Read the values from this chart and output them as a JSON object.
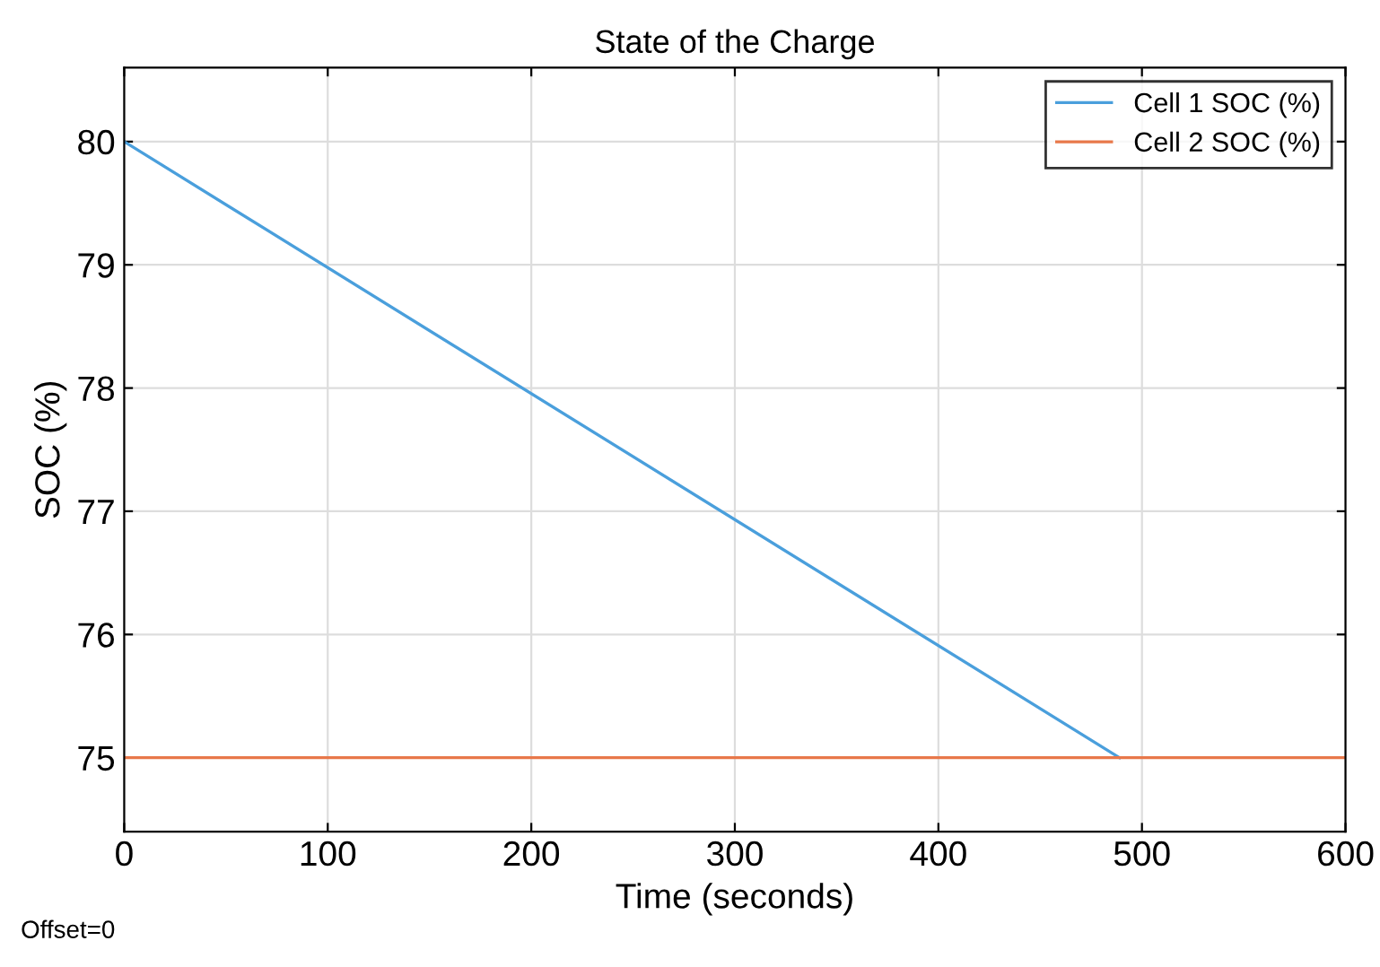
{
  "chart_data": {
    "type": "line",
    "title": "State of the Charge",
    "xlabel": "Time (seconds)",
    "ylabel": "SOC (%)",
    "series": [
      {
        "name": "Cell 1 SOC (%)",
        "color": "#4a9fdc",
        "x": [
          0,
          489
        ],
        "values": [
          80,
          75
        ]
      },
      {
        "name": "Cell 2 SOC (%)",
        "color": "#e8784a",
        "x": [
          0,
          600
        ],
        "values": [
          75,
          75
        ]
      }
    ],
    "xlim": [
      0,
      600
    ],
    "xticks": [
      0,
      100,
      200,
      300,
      400,
      500,
      600
    ],
    "ylim": [
      74.4,
      80.6
    ],
    "yticks": [
      75,
      76,
      77,
      78,
      79,
      80
    ],
    "grid": true,
    "legend": "top right",
    "annotations": [
      "Offset=0"
    ]
  }
}
